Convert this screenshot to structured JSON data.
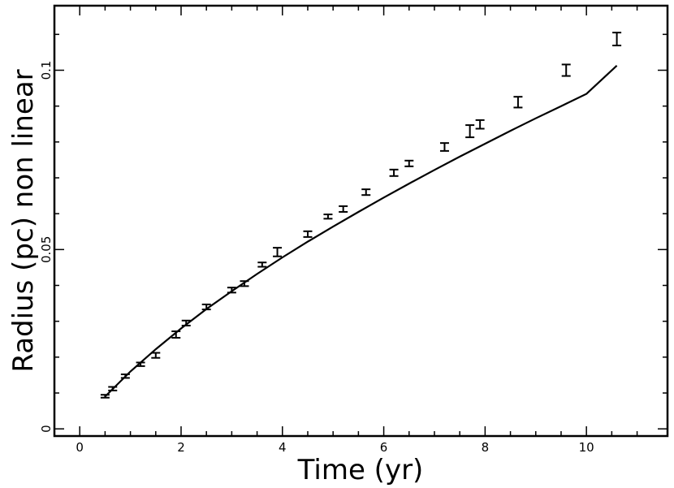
{
  "chart_data": {
    "type": "scatter",
    "xlabel": "Time (yr)",
    "ylabel": "Radius (pc) non linear",
    "xlim": [
      -0.5,
      11.6
    ],
    "ylim": [
      -0.002,
      0.118
    ],
    "xticks": [
      0,
      2,
      4,
      6,
      8,
      10
    ],
    "xtick_labels": [
      "0",
      "2",
      "4",
      "6",
      "8",
      "10"
    ],
    "yticks": [
      0,
      0.05,
      0.1
    ],
    "ytick_labels": [
      "0",
      "0.05",
      "0.1"
    ],
    "grid": false,
    "series": [
      {
        "style": "errorbar-points",
        "x": [
          0.5,
          0.65,
          0.9,
          1.2,
          1.5,
          1.9,
          2.1,
          2.5,
          3.0,
          3.25,
          3.6,
          3.9,
          4.5,
          4.9,
          5.2,
          5.65,
          6.2,
          6.5,
          7.2,
          7.7,
          7.9,
          8.65,
          9.6,
          10.6
        ],
        "y": [
          0.0091,
          0.0112,
          0.0147,
          0.018,
          0.0205,
          0.0263,
          0.0295,
          0.034,
          0.0387,
          0.0405,
          0.0458,
          0.0493,
          0.0543,
          0.0592,
          0.0613,
          0.066,
          0.0714,
          0.074,
          0.0786,
          0.083,
          0.0849,
          0.0911,
          0.1,
          0.1087
        ],
        "yerr": [
          0.0004,
          0.0005,
          0.0005,
          0.0005,
          0.0007,
          0.0009,
          0.0007,
          0.0007,
          0.0007,
          0.0007,
          0.0006,
          0.0012,
          0.0008,
          0.0006,
          0.0008,
          0.0008,
          0.0009,
          0.0008,
          0.0011,
          0.0017,
          0.0012,
          0.0015,
          0.0016,
          0.0018
        ]
      },
      {
        "style": "line",
        "x": [
          0.5,
          1.0,
          1.5,
          2.0,
          2.5,
          3.0,
          3.5,
          4.0,
          4.5,
          5.0,
          5.5,
          6.0,
          6.5,
          7.0,
          7.5,
          8.0,
          8.5,
          9.0,
          9.5,
          10.0,
          10.6
        ],
        "y": [
          0.009,
          0.016,
          0.0222,
          0.028,
          0.0334,
          0.0384,
          0.0432,
          0.0478,
          0.0522,
          0.0564,
          0.0605,
          0.0645,
          0.0684,
          0.0722,
          0.0759,
          0.0795,
          0.0831,
          0.0866,
          0.09,
          0.0934,
          0.1013
        ]
      }
    ]
  }
}
